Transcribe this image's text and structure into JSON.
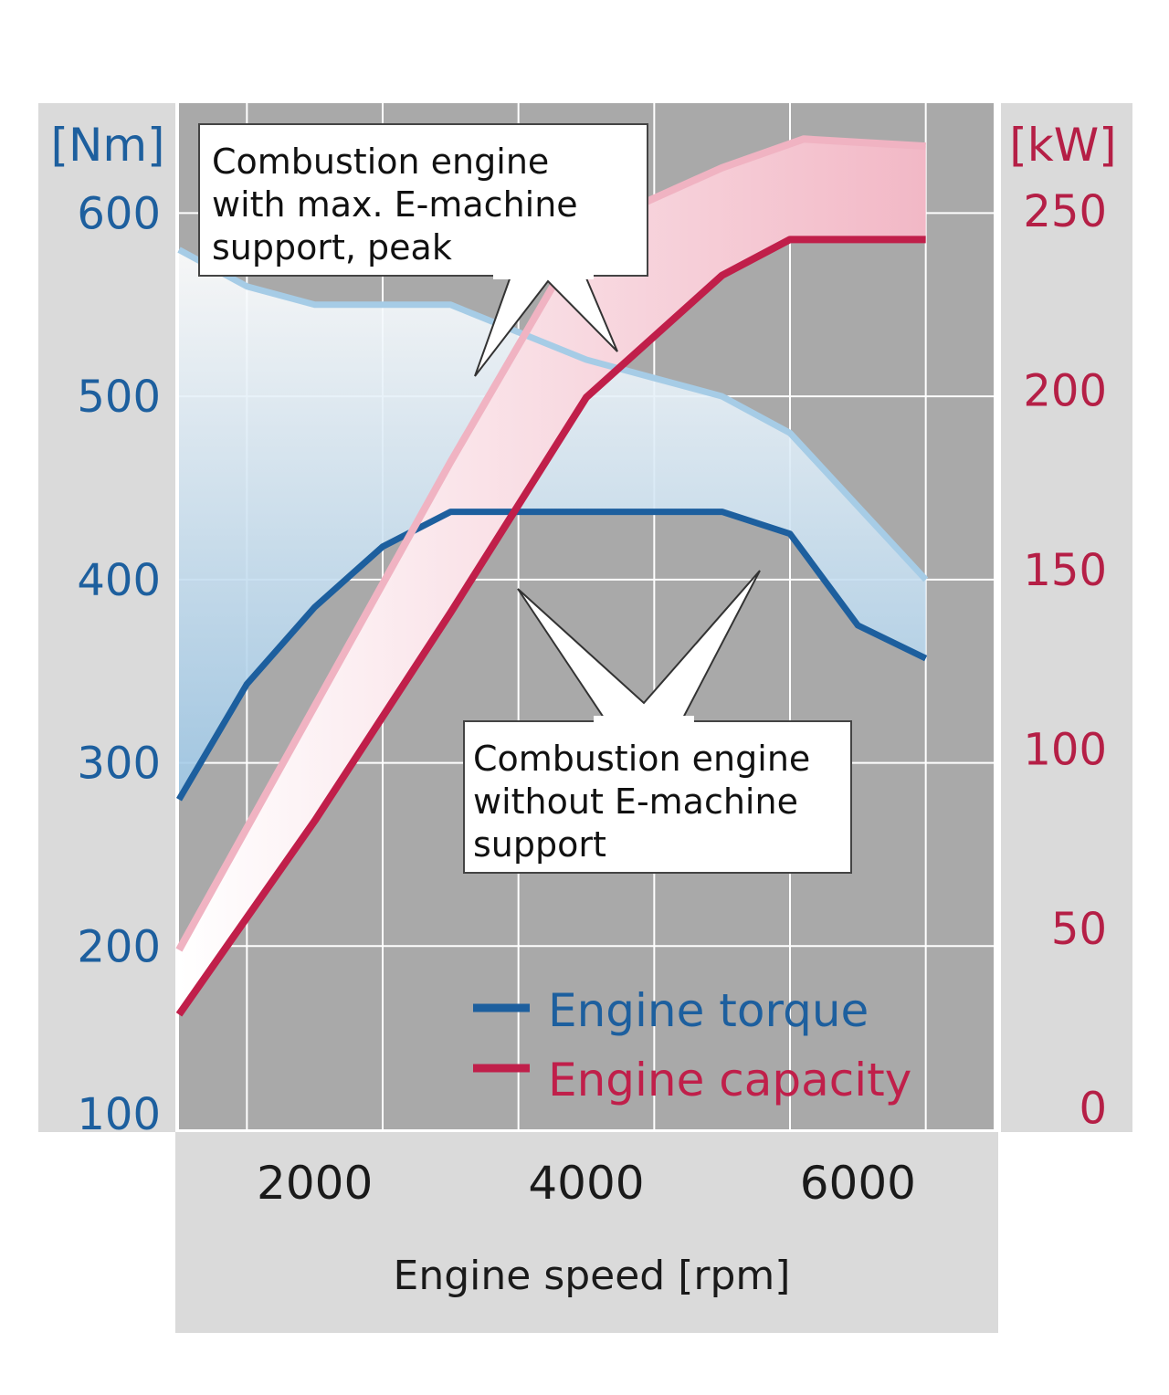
{
  "chart_data": {
    "type": "line",
    "xlabel": "Engine speed [rpm]",
    "y_left_unit": "[Nm]",
    "y_right_unit": "[kW]",
    "x_ticks": [
      2000,
      4000,
      6000
    ],
    "x_range": [
      1000,
      7000
    ],
    "y_left_ticks": [
      100,
      200,
      300,
      400,
      500,
      600
    ],
    "y_left_range": [
      100,
      660
    ],
    "y_right_ticks": [
      0,
      50,
      100,
      150,
      200,
      250
    ],
    "y_right_range": [
      -6,
      280
    ],
    "grid": true,
    "legend": {
      "position": "bottom-right",
      "entries": [
        {
          "label": "Engine torque",
          "color": "#1d5f9e"
        },
        {
          "label": "Engine capacity",
          "color": "#c01f4a"
        }
      ]
    },
    "callouts": [
      {
        "lines": [
          "Combustion engine",
          "with max. E-machine",
          "support, peak"
        ]
      },
      {
        "lines": [
          "Combustion engine",
          "without E-machine",
          "support"
        ]
      }
    ],
    "series": [
      {
        "axis": "left",
        "x": [
          1000,
          1500,
          2000,
          2500,
          3000,
          3500,
          4000,
          4500,
          5000,
          5500,
          6000,
          6500
        ],
        "values": [
          580,
          560,
          550,
          550,
          550,
          535,
          520,
          510,
          500,
          480,
          440,
          400
        ],
        "color": "#a6cce6"
      },
      {
        "axis": "left",
        "x": [
          1000,
          1500,
          2000,
          2500,
          3000,
          3500,
          4000,
          4500,
          5000,
          5500,
          6000,
          6500
        ],
        "values": [
          280,
          343,
          385,
          418,
          437,
          437,
          437,
          437,
          437,
          425,
          375,
          357
        ],
        "color": "#1d5f9e"
      },
      {
        "axis": "right",
        "x": [
          1000,
          2000,
          3000,
          4000,
          5000,
          5600,
          6500
        ],
        "values": [
          44,
          112,
          180,
          245,
          262,
          270,
          268
        ],
        "color": "#f0b3c2"
      },
      {
        "axis": "right",
        "x": [
          1000,
          2000,
          3000,
          4000,
          5000,
          5500,
          6500
        ],
        "values": [
          26,
          80,
          138,
          198,
          232,
          242,
          242
        ],
        "color": "#c01f4a"
      }
    ]
  }
}
